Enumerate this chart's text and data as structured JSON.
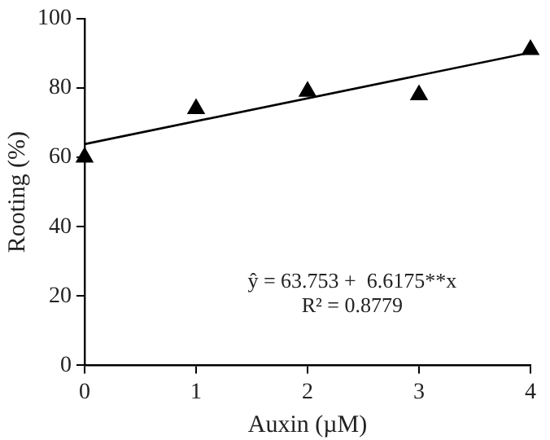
{
  "chart_data": {
    "type": "scatter",
    "xlabel": "Auxin (µM)",
    "ylabel": "Rooting (%)",
    "x": [
      0,
      1,
      2,
      3,
      4
    ],
    "series": [
      {
        "type": "scatter",
        "color": "#000000",
        "marker": "triangle",
        "values": [
          60,
          74,
          79,
          78,
          91
        ]
      },
      {
        "type": "line",
        "color": "#000000",
        "x": [
          0,
          4
        ],
        "values": [
          63.8,
          90.2
        ],
        "marker": "none",
        "line_style": "solid"
      }
    ],
    "xlim": [
      0,
      4
    ],
    "xticks": [
      0,
      1,
      2,
      3,
      4
    ],
    "ylim": [
      0,
      100
    ],
    "yticks": [
      0,
      20,
      40,
      60,
      80,
      100
    ],
    "grid": false,
    "legend": false,
    "annotations": [
      "ŷ = 63.753 +  6.6175**x",
      "R² = 0.8779"
    ]
  }
}
